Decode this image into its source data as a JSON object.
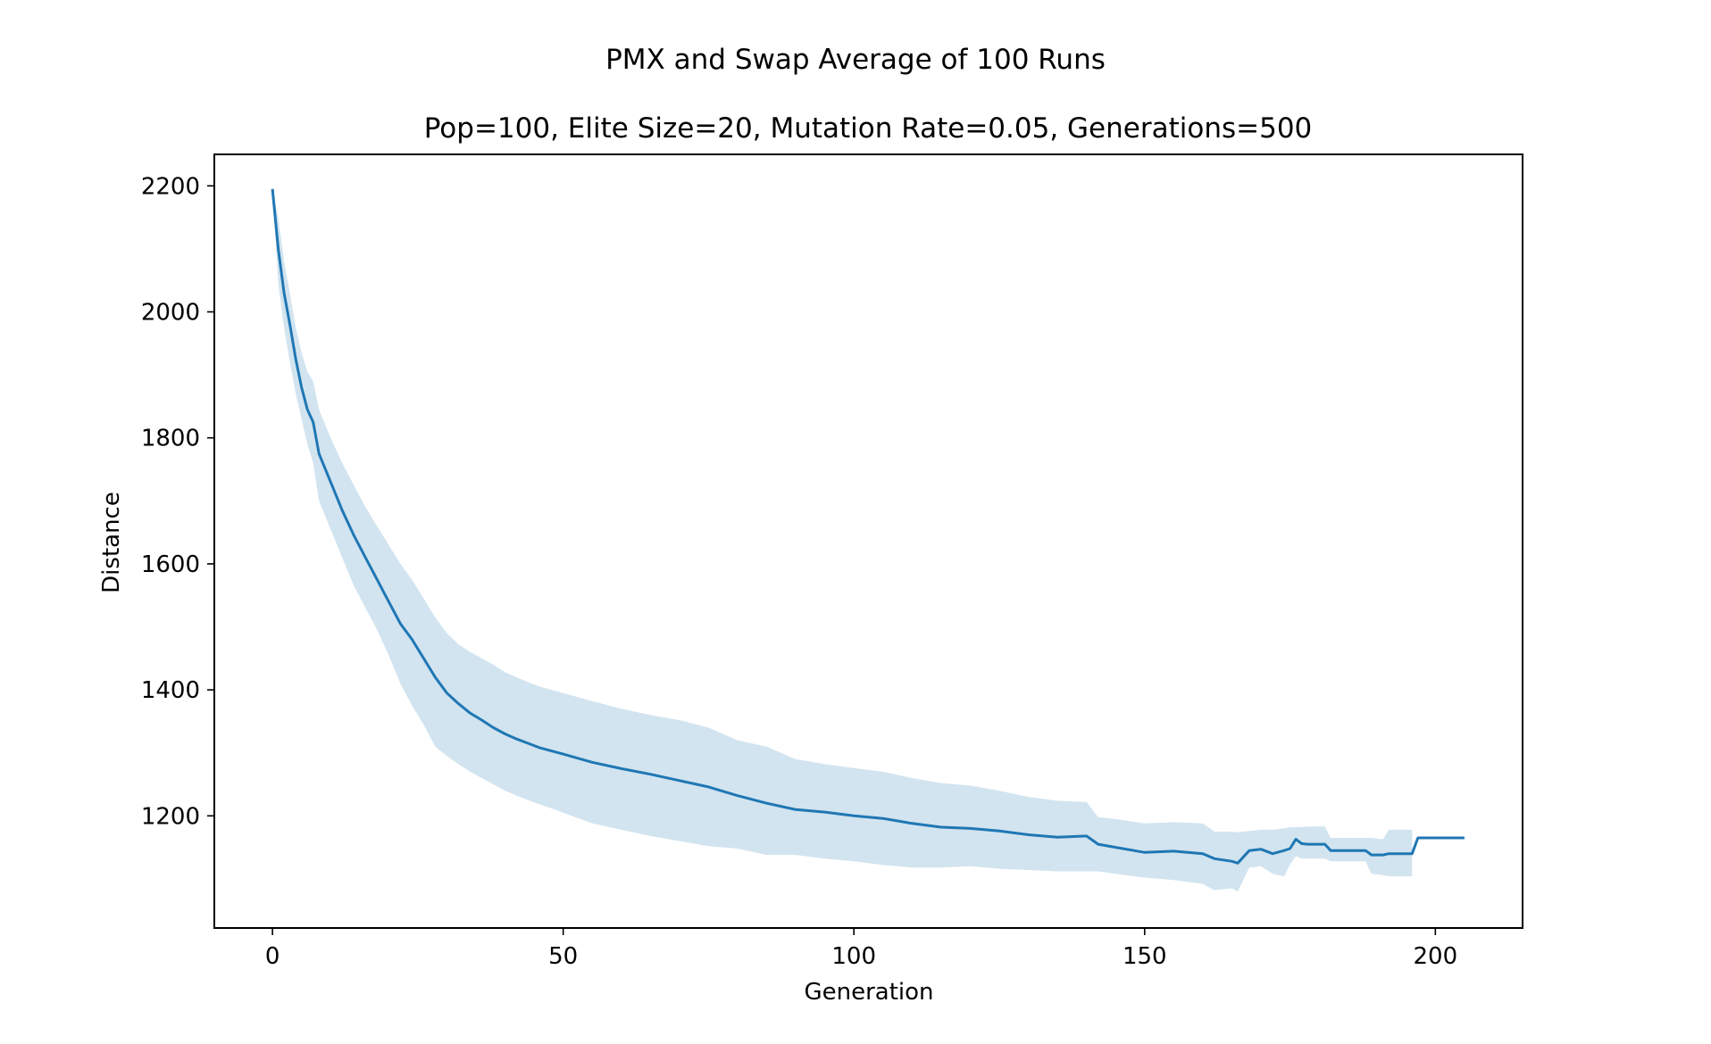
{
  "chart_data": {
    "type": "line",
    "suptitle": "PMX and Swap Average of 100 Runs",
    "title": "Pop=100, Elite Size=20, Mutation Rate=0.05, Generations=500",
    "xlabel": "Generation",
    "ylabel": "Distance",
    "xlim": [
      -10,
      215
    ],
    "ylim": [
      1022,
      2250
    ],
    "xticks": [
      0,
      50,
      100,
      150,
      200
    ],
    "yticks": [
      1200,
      1400,
      1600,
      1800,
      2000,
      2200
    ],
    "grid": false,
    "line_color": "#1f77b4",
    "band_color": "#1f77b4",
    "series": [
      {
        "x": [
          0,
          1,
          2,
          3,
          4,
          5,
          6,
          7,
          8,
          10,
          12,
          14,
          16,
          18,
          20,
          22,
          24,
          26,
          28,
          30,
          32,
          34,
          36,
          38,
          40,
          42,
          44,
          46,
          48,
          50,
          55,
          60,
          65,
          70,
          75,
          80,
          85,
          90,
          95,
          100,
          105,
          110,
          115,
          120,
          125,
          130,
          135,
          140,
          142,
          145,
          150,
          155,
          160,
          162,
          165,
          166,
          168,
          170,
          172,
          174,
          175,
          176,
          177,
          178,
          181,
          182,
          188,
          189,
          191,
          192,
          196,
          197,
          205
        ],
        "y": [
          2195,
          2100,
          2030,
          1980,
          1925,
          1880,
          1845,
          1825,
          1775,
          1730,
          1685,
          1645,
          1610,
          1575,
          1540,
          1505,
          1480,
          1450,
          1420,
          1395,
          1378,
          1363,
          1352,
          1340,
          1330,
          1322,
          1315,
          1308,
          1303,
          1298,
          1285,
          1275,
          1266,
          1256,
          1246,
          1232,
          1220,
          1210,
          1206,
          1200,
          1196,
          1188,
          1182,
          1180,
          1176,
          1170,
          1166,
          1168,
          1155,
          1150,
          1142,
          1144,
          1140,
          1132,
          1128,
          1125,
          1145,
          1147,
          1140,
          1145,
          1148,
          1163,
          1156,
          1155,
          1155,
          1145,
          1145,
          1138,
          1138,
          1140,
          1140,
          1165,
          1165
        ]
      }
    ],
    "band": {
      "x": [
        0,
        1,
        2,
        3,
        4,
        5,
        6,
        7,
        8,
        10,
        12,
        14,
        16,
        18,
        20,
        22,
        24,
        26,
        28,
        30,
        32,
        34,
        36,
        38,
        40,
        42,
        44,
        46,
        48,
        50,
        55,
        60,
        65,
        70,
        75,
        80,
        85,
        90,
        95,
        100,
        105,
        110,
        115,
        120,
        125,
        130,
        135,
        140,
        142,
        145,
        150,
        155,
        160,
        162,
        165,
        166,
        168,
        170,
        172,
        174,
        175,
        176,
        177,
        178,
        181,
        182,
        188,
        189,
        191,
        192,
        196
      ],
      "upper": [
        2195,
        2150,
        2080,
        2030,
        1975,
        1935,
        1905,
        1890,
        1845,
        1800,
        1760,
        1725,
        1690,
        1660,
        1630,
        1600,
        1575,
        1545,
        1515,
        1490,
        1472,
        1460,
        1450,
        1440,
        1428,
        1420,
        1412,
        1405,
        1400,
        1395,
        1382,
        1370,
        1360,
        1352,
        1340,
        1320,
        1310,
        1290,
        1282,
        1276,
        1270,
        1260,
        1252,
        1248,
        1240,
        1230,
        1224,
        1222,
        1198,
        1195,
        1188,
        1190,
        1188,
        1175,
        1175,
        1174,
        1176,
        1178,
        1178,
        1180,
        1182,
        1182,
        1182,
        1183,
        1183,
        1165,
        1165,
        1165,
        1163,
        1178,
        1178
      ],
      "lower": [
        2195,
        2045,
        1975,
        1920,
        1870,
        1830,
        1790,
        1760,
        1700,
        1655,
        1610,
        1565,
        1530,
        1495,
        1455,
        1410,
        1375,
        1345,
        1310,
        1295,
        1282,
        1270,
        1260,
        1250,
        1240,
        1232,
        1225,
        1218,
        1212,
        1205,
        1188,
        1178,
        1168,
        1160,
        1152,
        1148,
        1138,
        1138,
        1132,
        1128,
        1122,
        1118,
        1118,
        1120,
        1116,
        1114,
        1112,
        1112,
        1112,
        1108,
        1102,
        1098,
        1092,
        1082,
        1085,
        1080,
        1118,
        1120,
        1108,
        1104,
        1123,
        1136,
        1132,
        1132,
        1132,
        1128,
        1128,
        1108,
        1106,
        1104,
        1104
      ]
    }
  }
}
